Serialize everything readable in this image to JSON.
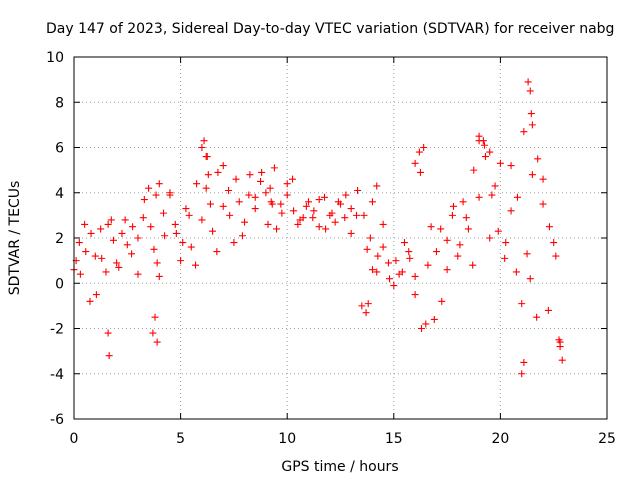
{
  "chart_data": {
    "type": "scatter",
    "title": "Day 147 of 2023, Sidereal Day-to-day VTEC variation (SDTVAR) for receiver nabg",
    "xlabel": "GPS time / hours",
    "ylabel": "SDTVAR / TECUs",
    "xlim": [
      0,
      25
    ],
    "ylim": [
      -6,
      10
    ],
    "xticks": [
      "0",
      "5",
      "10",
      "15",
      "20",
      "25"
    ],
    "yticks": [
      "-6",
      "-4",
      "-2",
      "0",
      "2",
      "4",
      "6",
      "8",
      "10"
    ],
    "grid": true,
    "marker": "+",
    "series": [
      {
        "name": "SDTVAR",
        "color": "#ff0000",
        "x": [
          0.0,
          0.25,
          0.5,
          0.75,
          1.0,
          1.25,
          1.5,
          1.75,
          2.0,
          2.25,
          2.5,
          2.75,
          3.0,
          3.25,
          3.5,
          3.75,
          4.0,
          4.25,
          4.5,
          4.75,
          5.0,
          5.25,
          5.5,
          5.75,
          6.0,
          6.25,
          6.5,
          6.75,
          7.0,
          7.25,
          7.5,
          7.75,
          8.0,
          8.25,
          8.5,
          8.75,
          9.0,
          9.25,
          9.5,
          9.75,
          10.0,
          10.25,
          10.5,
          10.75,
          11.0,
          11.25,
          11.5,
          11.75,
          12.0,
          12.25,
          12.5,
          12.75,
          13.0,
          13.25,
          13.5,
          13.75,
          14.0,
          14.25,
          14.5,
          14.75,
          15.0,
          15.25,
          15.5,
          15.75,
          16.0,
          16.25,
          16.5,
          16.75,
          17.0,
          17.25,
          17.5,
          17.75,
          18.0,
          18.25,
          18.5,
          18.75,
          19.0,
          19.25,
          19.5,
          19.75,
          20.0,
          20.25,
          20.5,
          20.75,
          21.0,
          21.25,
          21.5,
          21.75,
          22.0,
          22.25,
          22.5,
          22.75,
          0.1,
          0.3,
          0.55,
          0.8,
          1.05,
          1.3,
          1.6,
          1.85,
          2.1,
          2.4,
          2.7,
          3.0,
          3.3,
          3.6,
          3.9,
          4.2,
          4.5,
          4.8,
          5.1,
          5.4,
          5.7,
          6.0,
          6.2,
          6.4,
          6.7,
          7.0,
          7.3,
          7.6,
          7.9,
          8.2,
          8.5,
          8.8,
          9.1,
          9.4,
          9.7,
          10.0,
          10.3,
          10.6,
          10.9,
          11.2,
          11.5,
          11.8,
          12.1,
          12.4,
          12.7,
          13.0,
          13.3,
          13.6,
          13.9,
          14.2,
          14.5,
          14.8,
          15.1,
          15.4,
          15.7,
          16.0,
          16.3,
          16.6,
          16.9,
          17.2,
          17.5,
          17.8,
          18.1,
          18.4,
          18.7,
          19.0,
          19.3,
          19.6,
          19.9,
          20.2,
          20.5,
          20.8,
          21.1,
          21.4,
          21.7,
          22.0,
          22.3,
          22.6,
          22.8,
          1.6,
          1.65,
          3.7,
          3.8,
          3.9,
          6.1,
          6.2,
          6.3,
          9.2,
          9.3,
          13.7,
          13.8,
          16.0,
          16.2,
          16.4,
          19.0,
          19.2,
          19.5,
          21.3,
          21.4,
          21.45,
          21.5,
          21.0,
          21.1,
          22.9,
          22.8,
          14.0,
          14.2,
          3.85,
          4.0
        ],
        "y": [
          0.6,
          1.8,
          2.6,
          -0.8,
          1.2,
          2.4,
          0.5,
          2.8,
          0.9,
          2.2,
          1.7,
          2.5,
          0.4,
          2.9,
          4.2,
          1.5,
          0.3,
          2.1,
          3.9,
          2.6,
          1.0,
          3.3,
          1.6,
          4.4,
          2.8,
          5.6,
          2.3,
          4.9,
          3.4,
          4.1,
          1.8,
          3.6,
          2.7,
          4.8,
          3.8,
          4.5,
          4.0,
          3.6,
          2.4,
          3.1,
          3.9,
          4.6,
          2.6,
          2.9,
          3.6,
          3.2,
          2.5,
          3.8,
          3.0,
          2.7,
          3.5,
          3.9,
          2.2,
          3.0,
          -1.0,
          1.5,
          0.6,
          1.2,
          2.6,
          0.9,
          -0.1,
          0.4,
          1.8,
          1.1,
          0.3,
          4.9,
          -1.8,
          2.5,
          1.4,
          -0.8,
          1.9,
          3.0,
          1.2,
          3.6,
          2.4,
          5.0,
          3.8,
          6.1,
          2.0,
          4.3,
          5.3,
          1.8,
          3.2,
          0.5,
          -0.9,
          1.3,
          4.8,
          5.5,
          3.5,
          -1.2,
          1.8,
          -2.5,
          1.0,
          0.4,
          1.4,
          2.2,
          -0.5,
          1.1,
          2.6,
          1.9,
          0.7,
          2.8,
          1.3,
          2.0,
          3.7,
          2.5,
          0.9,
          3.1,
          4.0,
          2.2,
          1.8,
          3.0,
          0.8,
          6.0,
          4.2,
          3.5,
          1.4,
          5.2,
          3.0,
          4.6,
          2.1,
          3.9,
          3.3,
          4.9,
          2.6,
          5.1,
          3.5,
          4.4,
          3.2,
          2.8,
          3.4,
          2.9,
          3.7,
          2.4,
          3.1,
          3.6,
          2.9,
          3.3,
          4.1,
          3.0,
          2.0,
          0.5,
          1.6,
          0.2,
          1.0,
          0.5,
          1.4,
          -0.5,
          -2.0,
          0.8,
          -1.6,
          2.4,
          0.6,
          3.4,
          1.7,
          2.9,
          0.8,
          6.3,
          5.6,
          3.9,
          2.3,
          1.1,
          5.2,
          3.8,
          6.7,
          0.2,
          -1.5,
          4.6,
          2.5,
          1.2,
          -2.6,
          -2.2,
          -3.2,
          -2.2,
          -1.5,
          -2.6,
          6.3,
          5.6,
          4.8,
          4.2,
          3.5,
          -1.3,
          -0.9,
          5.3,
          5.8,
          6.0,
          6.5,
          6.3,
          5.8,
          8.9,
          8.5,
          7.5,
          7.0,
          -4.0,
          -3.5,
          -3.4,
          -2.8,
          3.6,
          4.3,
          3.9,
          4.4
        ]
      }
    ]
  }
}
